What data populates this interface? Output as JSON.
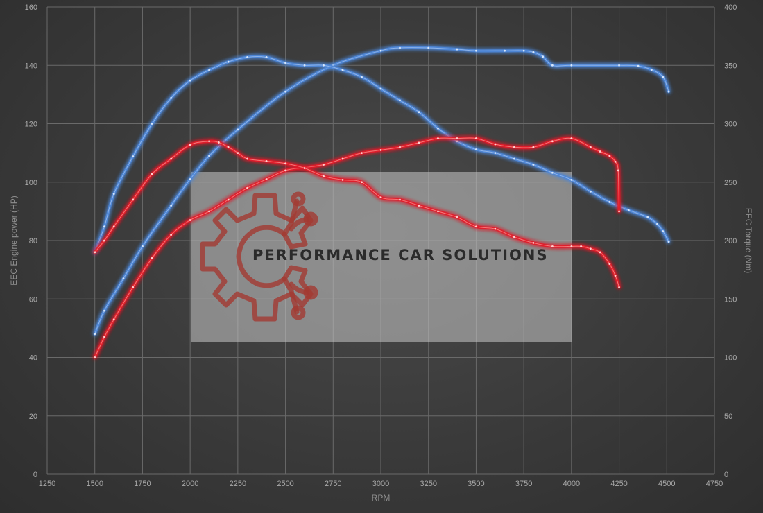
{
  "chart_data": {
    "type": "line",
    "title": "",
    "xlabel": "RPM",
    "ylabel_left": "EEC Engine power (HP)",
    "ylabel_right": "EEC Torque (Nm)",
    "xlim": [
      1250,
      4750
    ],
    "ylim_left": [
      0,
      160
    ],
    "ylim_right": [
      0,
      400
    ],
    "x_ticks": [
      1250,
      1500,
      1750,
      2000,
      2250,
      2500,
      2750,
      3000,
      3250,
      3500,
      3750,
      4000,
      4250,
      4500,
      4750
    ],
    "y_ticks_left": [
      0,
      20,
      40,
      60,
      80,
      100,
      120,
      140,
      160
    ],
    "y_ticks_right": [
      0,
      50,
      100,
      150,
      200,
      250,
      300,
      350,
      400
    ],
    "grid": true,
    "legend": "none",
    "colors": {
      "blue": "#4d86d6",
      "red": "#e0202a"
    },
    "series": [
      {
        "axis": "left",
        "color": "#4d86d6",
        "x": [
          1500,
          1550,
          1650,
          1750,
          1900,
          2000,
          2100,
          2250,
          2500,
          2750,
          3000,
          3100,
          3250,
          3400,
          3500,
          3650,
          3750,
          3800,
          3850,
          3900,
          4000,
          4250,
          4350,
          4420,
          4480,
          4510
        ],
        "y": [
          48,
          56,
          67,
          78,
          92,
          101,
          109,
          118,
          131,
          140,
          145,
          146,
          146,
          145.5,
          145,
          145,
          145,
          144.5,
          143,
          140,
          140,
          140,
          139.8,
          138.5,
          136,
          131
        ]
      },
      {
        "axis": "right",
        "color": "#4d86d6",
        "x": [
          1500,
          1550,
          1600,
          1700,
          1800,
          1900,
          2000,
          2100,
          2200,
          2300,
          2400,
          2500,
          2600,
          2700,
          2800,
          2900,
          3000,
          3100,
          3200,
          3300,
          3400,
          3500,
          3600,
          3700,
          3800,
          3900,
          4000,
          4100,
          4200,
          4300,
          4400,
          4450,
          4480,
          4510
        ],
        "y": [
          190,
          212,
          240,
          272,
          300,
          322,
          337,
          346,
          353,
          357,
          357,
          352,
          350,
          350,
          346,
          340,
          330,
          320,
          310,
          296,
          285,
          278,
          275,
          270,
          265,
          258,
          252,
          242,
          233,
          226,
          220,
          214,
          208,
          199
        ]
      },
      {
        "axis": "left",
        "color": "#e0202a",
        "x": [
          1500,
          1550,
          1600,
          1700,
          1800,
          1900,
          2000,
          2100,
          2200,
          2300,
          2400,
          2500,
          2600,
          2700,
          2800,
          2900,
          3000,
          3100,
          3200,
          3300,
          3400,
          3500,
          3600,
          3700,
          3800,
          3900,
          4000,
          4100,
          4150,
          4200,
          4230,
          4245,
          4250
        ],
        "y": [
          40,
          47,
          53,
          64,
          74,
          82,
          87,
          90,
          94,
          98,
          101,
          104,
          105,
          106,
          108,
          110,
          111,
          112,
          113.5,
          115,
          115,
          115,
          113,
          112,
          112,
          114,
          115,
          112,
          110.5,
          109,
          107,
          104,
          90
        ]
      },
      {
        "axis": "right",
        "color": "#e0202a",
        "x": [
          1500,
          1550,
          1600,
          1700,
          1800,
          1900,
          2000,
          2100,
          2150,
          2200,
          2250,
          2300,
          2400,
          2500,
          2600,
          2700,
          2800,
          2900,
          3000,
          3100,
          3200,
          3300,
          3400,
          3500,
          3600,
          3700,
          3800,
          3900,
          4000,
          4050,
          4100,
          4150,
          4200,
          4230,
          4250
        ],
        "y": [
          190,
          200,
          212,
          235,
          257,
          270,
          282,
          285,
          284,
          280,
          275,
          270,
          268,
          266,
          262,
          255,
          252,
          250,
          237,
          235,
          230,
          225,
          220,
          212,
          210,
          203,
          198,
          195,
          195,
          195,
          193,
          190,
          180,
          170,
          160
        ]
      }
    ]
  },
  "watermark": {
    "text": "PERFORMANCE CAR SOLUTIONS",
    "logo_icon": "gear-circuit-logo-icon"
  }
}
